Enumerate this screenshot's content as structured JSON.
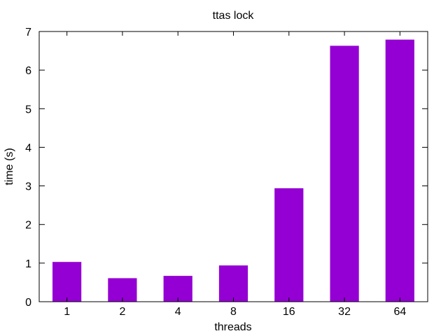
{
  "chart_data": {
    "type": "bar",
    "title": "ttas lock",
    "xlabel": "threads",
    "ylabel": "time (s)",
    "categories": [
      "1",
      "2",
      "4",
      "8",
      "16",
      "32",
      "64"
    ],
    "values": [
      1.03,
      0.61,
      0.67,
      0.94,
      2.94,
      6.63,
      6.79
    ],
    "ylim": [
      0,
      7
    ],
    "yticks": [
      0,
      1,
      2,
      3,
      4,
      5,
      6,
      7
    ],
    "grid": false,
    "legend": "none",
    "bar_color": "#9400d3",
    "axis_color": "#000000"
  }
}
